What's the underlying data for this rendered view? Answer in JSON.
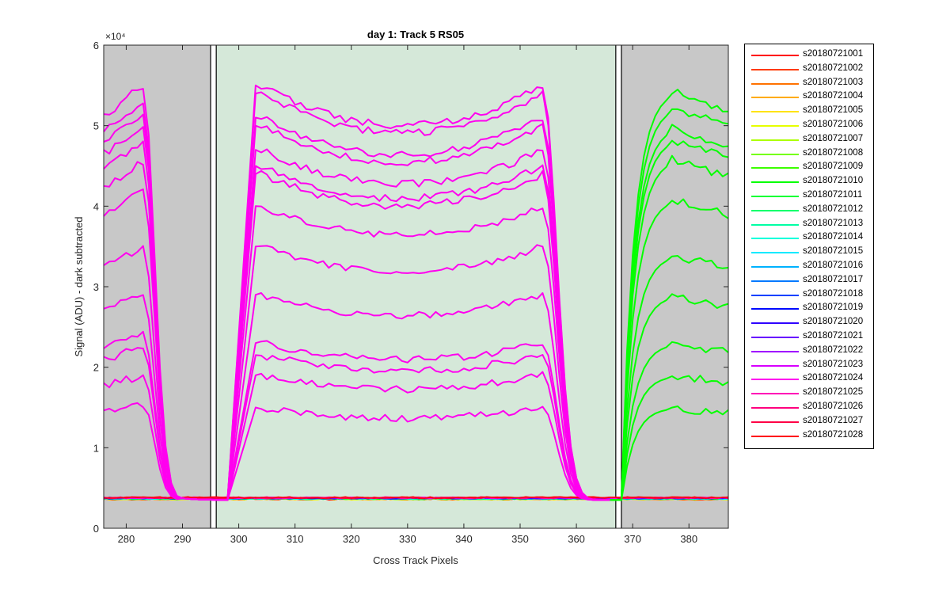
{
  "chart_data": {
    "type": "line",
    "title": "day 1: Track 5  RS05",
    "xlabel": "Cross Track Pixels",
    "ylabel": "Signal (ADU) - dark subtracted",
    "y_exponent_label": "×10⁴",
    "xlim": [
      276,
      387
    ],
    "ylim": [
      0,
      60000
    ],
    "xticks": [
      280,
      290,
      300,
      310,
      320,
      330,
      340,
      350,
      360,
      370,
      380
    ],
    "xtick_labels": [
      "280",
      "290",
      "300",
      "310",
      "320",
      "330",
      "340",
      "350",
      "360",
      "370",
      "380"
    ],
    "yticks": [
      0,
      10000,
      20000,
      30000,
      40000,
      50000,
      60000
    ],
    "ytick_labels": [
      "0",
      "1",
      "2",
      "3",
      "4",
      "5",
      "6"
    ],
    "grid": false,
    "legend_position": "outside-right",
    "shaded_regions": [
      {
        "x": [
          276,
          295
        ],
        "color": "#c8c8c8"
      },
      {
        "x": [
          296,
          367
        ],
        "color": "#d5e8d9"
      },
      {
        "x": [
          368,
          387
        ],
        "color": "#c8c8c8"
      }
    ],
    "region_boundaries": [
      295,
      296,
      367,
      368
    ],
    "illuminated_profiles": {
      "left_peaks": [
        53000,
        55000,
        51500,
        50000,
        48000,
        45500,
        42000,
        35000,
        29000,
        24000,
        22500,
        19000,
        15500
      ],
      "center_levels": [
        55000,
        54000,
        51000,
        50000,
        47000,
        45000,
        44000,
        40000,
        35000,
        29000,
        23000,
        21500,
        19000,
        15000
      ],
      "right_peaks": [
        54500,
        52500,
        50000,
        48500,
        46000,
        41000,
        34000,
        29000,
        23000,
        19000,
        15000
      ],
      "baseline": 3500
    },
    "series": [
      {
        "name": "s20180721001",
        "color": "#ff0000"
      },
      {
        "name": "s20180721002",
        "color": "#ff3a00"
      },
      {
        "name": "s20180721003",
        "color": "#ff7200"
      },
      {
        "name": "s20180721004",
        "color": "#ffab00"
      },
      {
        "name": "s20180721005",
        "color": "#ffe300"
      },
      {
        "name": "s20180721006",
        "color": "#e6ff00"
      },
      {
        "name": "s20180721007",
        "color": "#adff00"
      },
      {
        "name": "s20180721008",
        "color": "#75ff00"
      },
      {
        "name": "s20180721009",
        "color": "#3cff00"
      },
      {
        "name": "s20180721010",
        "color": "#04ff00"
      },
      {
        "name": "s20180721011",
        "color": "#00ff33"
      },
      {
        "name": "s20180721012",
        "color": "#00ff6b"
      },
      {
        "name": "s20180721013",
        "color": "#00ffa4"
      },
      {
        "name": "s20180721014",
        "color": "#00ffdc"
      },
      {
        "name": "s20180721015",
        "color": "#00eaff"
      },
      {
        "name": "s20180721016",
        "color": "#00b2ff"
      },
      {
        "name": "s20180721017",
        "color": "#0079ff"
      },
      {
        "name": "s20180721018",
        "color": "#0041ff"
      },
      {
        "name": "s20180721019",
        "color": "#0009ff"
      },
      {
        "name": "s20180721020",
        "color": "#2e00ff"
      },
      {
        "name": "s20180721021",
        "color": "#6700ff"
      },
      {
        "name": "s20180721022",
        "color": "#9f00ff"
      },
      {
        "name": "s20180721023",
        "color": "#d800ff"
      },
      {
        "name": "s20180721024",
        "color": "#ff00ef"
      },
      {
        "name": "s20180721025",
        "color": "#ff00b6"
      },
      {
        "name": "s20180721026",
        "color": "#ff007e"
      },
      {
        "name": "s20180721027",
        "color": "#ff0045"
      },
      {
        "name": "s20180721028",
        "color": "#ff000d"
      }
    ]
  }
}
